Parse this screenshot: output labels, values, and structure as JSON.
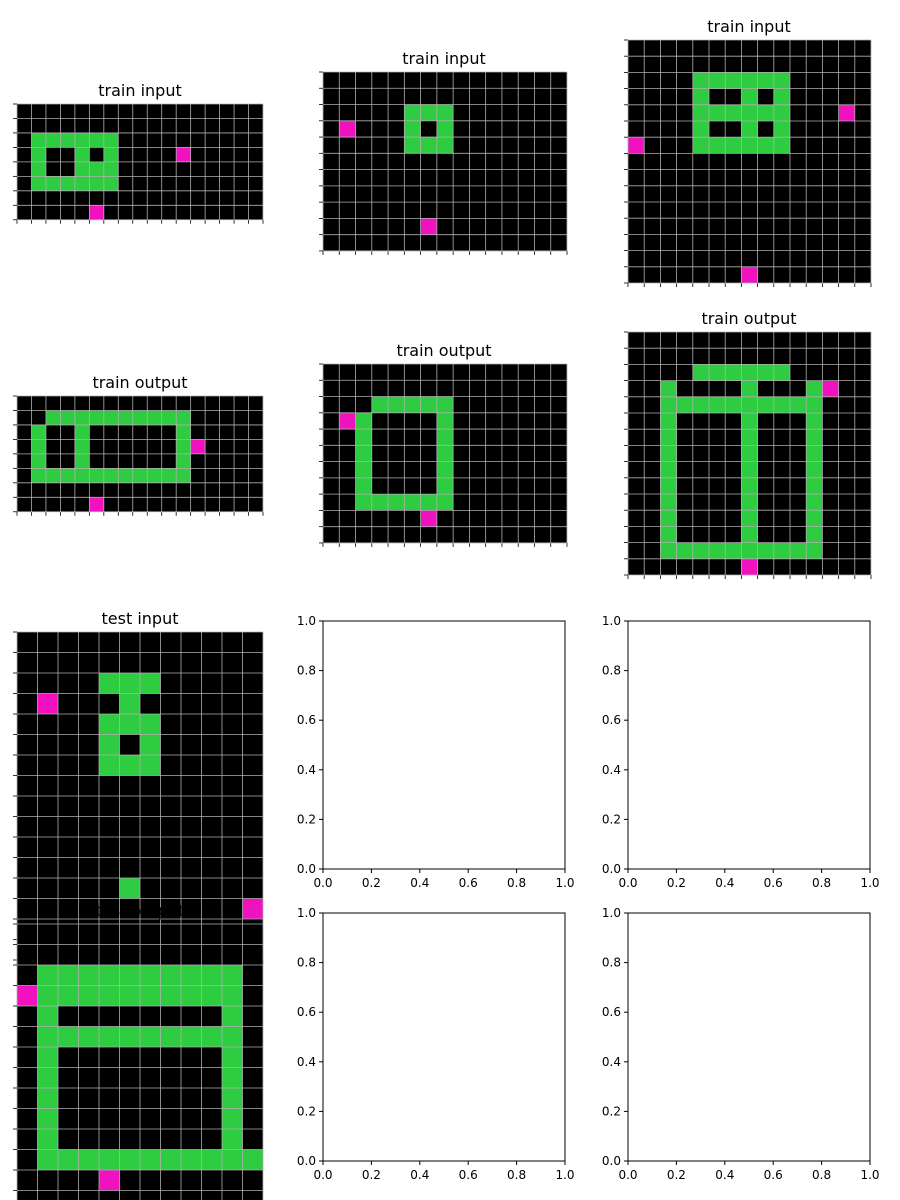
{
  "colors": {
    "background": "#000000",
    "green": "#2ecc40",
    "magenta": "#f012be",
    "grid": "#b0b0b0"
  },
  "panels": [
    {
      "title": "train input",
      "rows": 8,
      "cols": 17,
      "cells": [
        "00000000000000000",
        "00000000000000000",
        "03333330000000000",
        "03003030000200000",
        "03003330000000000",
        "03333330000000000",
        "00000000000000000",
        "00000200000000000"
      ]
    },
    {
      "title": "train input",
      "rows": 11,
      "cols": 15,
      "cells": [
        "000000000000000",
        "000000000000000",
        "000003330000000",
        "020003030000000",
        "000003330000000",
        "000000000000000",
        "000000000000000",
        "000000000000000",
        "000000000000000",
        "000000200000000",
        "000000000000000"
      ]
    },
    {
      "title": "train input",
      "rows": 15,
      "cols": 15,
      "cells": [
        "000000000000000",
        "000000000000000",
        "000033333300000",
        "000030030300000",
        "000033333300020",
        "000030030300000",
        "200033333300000",
        "000000000000000",
        "000000000000000",
        "000000000000000",
        "000000000000000",
        "000000000000000",
        "000000000000000",
        "000000000000000",
        "000000020000000"
      ]
    },
    {
      "title": "train output",
      "rows": 8,
      "cols": 17,
      "cells": [
        "00000000000000000",
        "00333333333300000",
        "03003000000300000",
        "03003000000320000",
        "03003000000300000",
        "03333333333300000",
        "00000000000000000",
        "00000200000000000"
      ]
    },
    {
      "title": "train output",
      "rows": 11,
      "cols": 15,
      "cells": [
        "000000000000000",
        "000000000000000",
        "000333330000000",
        "023000030000000",
        "003000030000000",
        "003000030000000",
        "003000030000000",
        "003000030000000",
        "003333330000000",
        "000000200000000",
        "000000000000000"
      ]
    },
    {
      "title": "train output",
      "rows": 15,
      "cols": 15,
      "cells": [
        "000000000000000",
        "000000000000000",
        "000033333300000",
        "003000030003200",
        "003333333333000",
        "003000030003000",
        "003000030003000",
        "003000030003000",
        "003000030003000",
        "003000030003000",
        "003000030003000",
        "003000030003000",
        "003000030003000",
        "003333333333000",
        "000000020000000"
      ]
    },
    {
      "title": "test input",
      "rows": 16,
      "cols": 12,
      "cells": [
        "000000000000",
        "000000000000",
        "000033300000",
        "020003000000",
        "000033300000",
        "000030300000",
        "000033300000",
        "000000000000",
        "000000000000",
        "000000000000",
        "000000000000",
        "000000000000",
        "000003000000",
        "000000000002",
        "000000000000",
        "000000000000"
      ]
    },
    {
      "title": "test output",
      "rows": 16,
      "cols": 12,
      "cells": [
        "000000000000",
        "000000000000",
        "033333333330",
        "233333333330",
        "030000000030",
        "033333333330",
        "030000000030",
        "030000000030",
        "030000000030",
        "030000000030",
        "030000000030",
        "033333333333",
        "000020000000",
        "000000000000",
        "000000000000",
        "000000000000"
      ]
    }
  ],
  "empty_axes": {
    "ticks": [
      "0.0",
      "0.2",
      "0.4",
      "0.6",
      "0.8",
      "1.0"
    ]
  }
}
